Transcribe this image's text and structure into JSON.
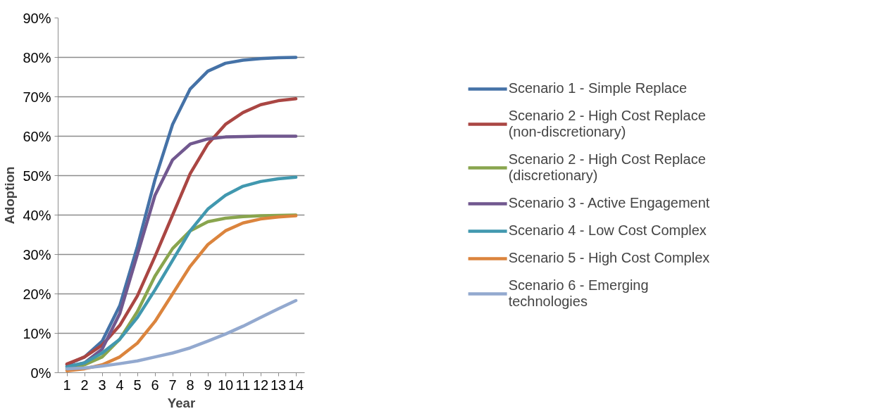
{
  "chart_data": {
    "type": "line",
    "xlabel": "Year",
    "ylabel": "Adoption",
    "x": [
      1,
      2,
      3,
      4,
      5,
      6,
      7,
      8,
      9,
      10,
      11,
      12,
      13,
      14
    ],
    "xlim": [
      0.5,
      14.5
    ],
    "xticks": [
      1,
      2,
      3,
      4,
      5,
      6,
      7,
      8,
      9,
      10,
      11,
      12,
      13,
      14
    ],
    "ylim": [
      0,
      90
    ],
    "yticks": [
      {
        "value": 0,
        "label": "0%"
      },
      {
        "value": 10,
        "label": "10%"
      },
      {
        "value": 20,
        "label": "20%"
      },
      {
        "value": 30,
        "label": "30%"
      },
      {
        "value": 40,
        "label": "40%"
      },
      {
        "value": 50,
        "label": "50%"
      },
      {
        "value": 60,
        "label": "60%"
      },
      {
        "value": 70,
        "label": "70%"
      },
      {
        "value": 80,
        "label": "80%"
      },
      {
        "value": 90,
        "label": "90%"
      }
    ],
    "grid": "y",
    "legend": "right",
    "marker": "none",
    "line_style": "solid",
    "series": [
      {
        "name": "Scenario 1 - Simple Replace",
        "color": "#4572a7",
        "values": [
          2,
          4,
          8,
          17,
          32,
          49,
          63,
          72,
          76.5,
          78.5,
          79.3,
          79.7,
          79.9,
          80
        ]
      },
      {
        "name": "Scenario 2 - High Cost Replace (non-discretionary)",
        "color": "#aa4643",
        "values": [
          2.2,
          4,
          7,
          12,
          19.5,
          29.5,
          40,
          50.5,
          58,
          63,
          66,
          68,
          69,
          69.5
        ]
      },
      {
        "name": "Scenario 2 - High Cost Replace (discretionary)",
        "color": "#89a54e",
        "values": [
          1,
          2,
          4,
          8.5,
          15.5,
          24.5,
          31.5,
          36,
          38.3,
          39.2,
          39.6,
          39.8,
          39.9,
          40
        ]
      },
      {
        "name": "Scenario 3 - Active Engagement",
        "color": "#71588f",
        "values": [
          1.5,
          2.5,
          6,
          15,
          30,
          45,
          54,
          58,
          59.3,
          59.8,
          59.9,
          60,
          60,
          60
        ]
      },
      {
        "name": "Scenario 4 - Low Cost Complex",
        "color": "#4198af",
        "values": [
          1.5,
          2.5,
          5,
          8.5,
          14,
          21,
          28.5,
          36,
          41.5,
          45,
          47.3,
          48.5,
          49.2,
          49.6
        ]
      },
      {
        "name": "Scenario 5 - High Cost Complex",
        "color": "#db843d",
        "values": [
          0.5,
          1,
          2,
          4,
          7.5,
          13,
          20,
          27,
          32.5,
          36,
          38,
          39,
          39.5,
          39.8
        ]
      },
      {
        "name": "Scenario 6 - Emerging technologies",
        "color": "#93a9cf",
        "values": [
          1,
          1.2,
          1.7,
          2.3,
          3,
          4,
          5,
          6.3,
          8,
          9.8,
          11.8,
          14,
          16.2,
          18.3
        ]
      }
    ]
  }
}
